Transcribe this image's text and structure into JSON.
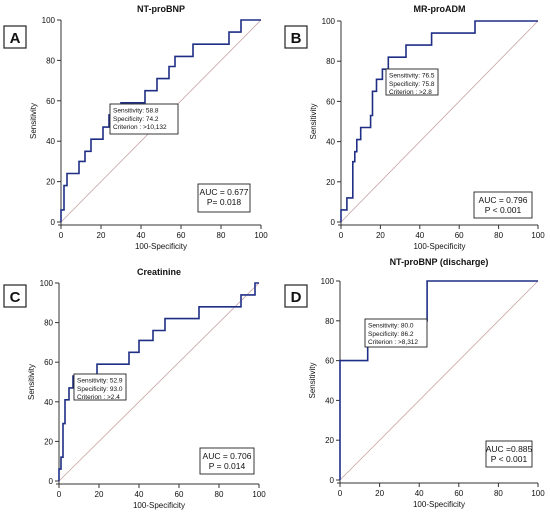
{
  "panels": [
    {
      "letter": "A",
      "title": "NT-proBNP",
      "chart_data": {
        "type": "line",
        "title": "NT-proBNP",
        "xlabel": "100-Specificity",
        "ylabel": "Sensitivity",
        "xlim": [
          0,
          100
        ],
        "ylim": [
          0,
          100
        ],
        "xticks": [
          0,
          20,
          40,
          60,
          80,
          100
        ],
        "yticks": [
          0,
          20,
          40,
          60,
          80,
          100
        ],
        "series": [
          {
            "x": [
              0,
              0,
              1.5,
              1.5,
              3,
              3,
              9,
              9,
              12,
              12,
              15,
              15,
              21,
              21,
              24,
              24,
              30,
              30,
              42,
              42,
              48,
              48,
              54,
              54,
              57,
              57,
              66,
              66,
              72,
              72,
              84,
              84,
              90,
              90,
              100
            ],
            "y": [
              0,
              6,
              6,
              18,
              18,
              24,
              24,
              30,
              30,
              35,
              35,
              41,
              41,
              47,
              47,
              53,
              53,
              59,
              59,
              65,
              65,
              71,
              71,
              77,
              77,
              82,
              82,
              88,
              88,
              88,
              88,
              94,
              94,
              100,
              100
            ]
          }
        ],
        "reference_line": {
          "x": [
            0,
            100
          ],
          "y": [
            0,
            100
          ]
        },
        "annotations": [
          {
            "lines": [
              "Sensitivity: 58.8",
              "Specificity: 74.2",
              "Criterion : >10,132"
            ]
          },
          {
            "lines": [
              "AUC = 0.677",
              "P= 0.018"
            ]
          }
        ]
      }
    },
    {
      "letter": "B",
      "title": "MR-proADM",
      "chart_data": {
        "type": "line",
        "title": "MR-proADM",
        "xlabel": "100-Specificity",
        "ylabel": "Sensitivity",
        "xlim": [
          0,
          100
        ],
        "ylim": [
          0,
          100
        ],
        "xticks": [
          0,
          20,
          40,
          60,
          80,
          100
        ],
        "yticks": [
          0,
          20,
          40,
          60,
          80,
          100
        ],
        "series": [
          {
            "x": [
              0,
              0,
              3,
              3,
              6,
              6,
              7,
              7,
              8,
              8,
              9,
              9,
              10,
              10,
              12,
              12,
              15,
              15,
              16,
              16,
              18,
              18,
              21,
              21,
              24,
              24,
              33,
              33,
              46,
              46,
              68,
              68,
              100
            ],
            "y": [
              0,
              6,
              6,
              12,
              12,
              30,
              30,
              35,
              35,
              41,
              41,
              41,
              41,
              47,
              47,
              47,
              47,
              53,
              53,
              65,
              65,
              71,
              71,
              76,
              76,
              82,
              82,
              88,
              88,
              94,
              94,
              100,
              100
            ]
          }
        ],
        "reference_line": {
          "x": [
            0,
            100
          ],
          "y": [
            0,
            100
          ]
        },
        "annotations": [
          {
            "lines": [
              "Sensitivity: 76.5",
              "Specificity: 75.8",
              "Criterion : >2.8"
            ]
          },
          {
            "lines": [
              "AUC = 0.796",
              "P < 0.001"
            ]
          }
        ]
      }
    },
    {
      "letter": "C",
      "title": "Creatinine",
      "chart_data": {
        "type": "line",
        "title": "Creatinine",
        "xlabel": "100-Specificity",
        "ylabel": "Sensitivity",
        "xlim": [
          0,
          100
        ],
        "ylim": [
          0,
          100
        ],
        "xticks": [
          0,
          20,
          40,
          60,
          80,
          100
        ],
        "yticks": [
          0,
          20,
          40,
          60,
          80,
          100
        ],
        "series": [
          {
            "x": [
              0,
              0,
              1,
              1,
              2,
              2,
              3,
              3,
              5,
              5,
              7,
              7,
              19,
              19,
              35,
              35,
              37,
              37,
              40,
              40,
              47,
              47,
              53,
              53,
              70,
              70,
              91,
              91,
              98,
              98,
              100
            ],
            "y": [
              0,
              6,
              6,
              12,
              12,
              29,
              29,
              41,
              41,
              47,
              47,
              53,
              53,
              59,
              59,
              65,
              65,
              65,
              65,
              71,
              71,
              76,
              76,
              82,
              82,
              88,
              88,
              94,
              94,
              100,
              100
            ]
          }
        ],
        "reference_line": {
          "x": [
            0,
            100
          ],
          "y": [
            0,
            100
          ]
        },
        "annotations": [
          {
            "lines": [
              "Sensitivity: 52.9",
              "Specificity: 93.0",
              "Criterion : >2.4"
            ]
          },
          {
            "lines": [
              "AUC = 0.706",
              "P = 0.014"
            ]
          }
        ]
      }
    },
    {
      "letter": "D",
      "title": "NT-proBNP (discharge)",
      "chart_data": {
        "type": "line",
        "title": "NT-proBNP (discharge)",
        "xlabel": "100-Specificity",
        "ylabel": "Sensitivity",
        "xlim": [
          0,
          100
        ],
        "ylim": [
          0,
          100
        ],
        "xticks": [
          0,
          20,
          40,
          60,
          80,
          100
        ],
        "yticks": [
          0,
          20,
          40,
          60,
          80,
          100
        ],
        "series": [
          {
            "x": [
              0,
              0,
              14,
              14,
              44,
              44,
              100
            ],
            "y": [
              0,
              60,
              60,
              80,
              80,
              100,
              100
            ]
          }
        ],
        "reference_line": {
          "x": [
            0,
            100
          ],
          "y": [
            0,
            100
          ]
        },
        "annotations": [
          {
            "lines": [
              "Sensitivity: 80.0",
              "Specificity: 86.2",
              "Criterion : >8,312"
            ]
          },
          {
            "lines": [
              "AUC =0.885",
              "P < 0.001"
            ]
          }
        ]
      }
    }
  ],
  "colors": {
    "roc_curve": "#1f2f86",
    "reference_line": "#c9a2a2",
    "axis": "#333333",
    "text": "#111111",
    "letter_border": "#222222"
  }
}
